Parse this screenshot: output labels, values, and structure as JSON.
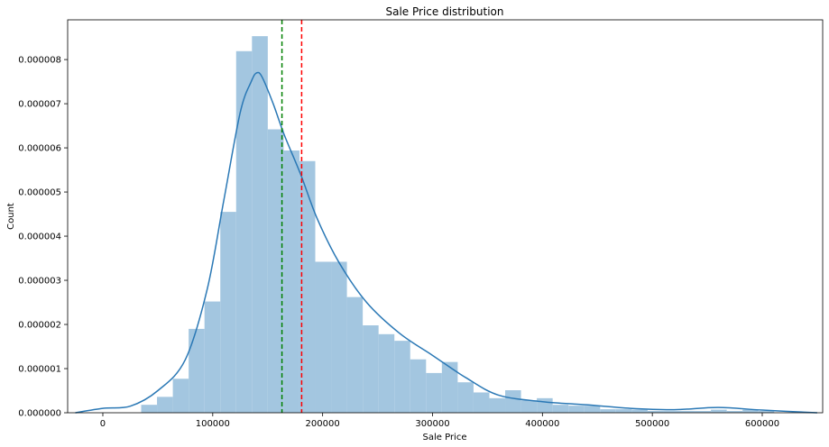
{
  "chart_data": {
    "type": "bar",
    "subtype": "histogram_with_kde",
    "title": "Sale Price distribution",
    "xlabel": "Sale Price",
    "ylabel": "Count",
    "xlim": [
      -32000,
      655000
    ],
    "ylim": [
      0,
      8.9e-06
    ],
    "xticks": [
      0,
      100000,
      200000,
      300000,
      400000,
      500000,
      600000
    ],
    "xtick_labels": [
      "0",
      "100000",
      "200000",
      "300000",
      "400000",
      "500000",
      "600000"
    ],
    "yticks": [
      0,
      1e-06,
      2e-06,
      3e-06,
      4e-06,
      5e-06,
      6e-06,
      7e-06,
      8e-06
    ],
    "ytick_labels": [
      "0.000000",
      "0.000001",
      "0.000002",
      "0.000003",
      "0.000004",
      "0.000005",
      "0.000006",
      "0.000007",
      "0.000008"
    ],
    "grid": false,
    "bar_color": "#a3c6e0",
    "kde_color": "#2a78b5",
    "bins": {
      "edges": [
        34900,
        49300,
        63700,
        78100,
        92500,
        106900,
        121300,
        135700,
        150100,
        164500,
        178900,
        193300,
        207700,
        222100,
        236500,
        250900,
        265300,
        279700,
        294100,
        308500,
        322900,
        337300,
        351700,
        366100,
        380500,
        394900,
        409300,
        423700,
        438100,
        452500,
        466900,
        481300,
        495700,
        510100,
        524500,
        538900,
        553300,
        567700,
        582100,
        596500,
        610900
      ],
      "heights": [
        1.8e-07,
        3.6e-07,
        7.7e-07,
        1.9e-06,
        2.52e-06,
        4.55e-06,
        8.19e-06,
        8.53e-06,
        6.42e-06,
        5.94e-06,
        5.7e-06,
        3.42e-06,
        3.42e-06,
        2.62e-06,
        1.98e-06,
        1.78e-06,
        1.63e-06,
        1.21e-06,
        9e-07,
        1.15e-06,
        6.9e-07,
        4.6e-07,
        3.3e-07,
        5.1e-07,
        2.8e-07,
        3.3e-07,
        1.8e-07,
        1.6e-07,
        1.6e-07,
        8e-08,
        8e-08,
        7e-08,
        4e-08,
        4e-08,
        4e-08,
        4e-08,
        7e-08,
        4e-08,
        7e-08,
        4e-08
      ]
    },
    "kde": {
      "x": [
        -25000,
        0,
        25000,
        50000,
        75000,
        95000,
        110000,
        125000,
        135000,
        140000,
        145000,
        155000,
        165000,
        180000,
        195000,
        215000,
        240000,
        270000,
        300000,
        330000,
        360000,
        400000,
        440000,
        480000,
        520000,
        560000,
        600000,
        650000
      ],
      "y": [
        0.0,
        1e-07,
        1.5e-07,
        5e-07,
        1.2e-06,
        2.8e-06,
        4.8e-06,
        6.8e-06,
        7.5e-06,
        7.7e-06,
        7.6e-06,
        7e-06,
        6.3e-06,
        5.4e-06,
        4.4e-06,
        3.4e-06,
        2.5e-06,
        1.8e-06,
        1.3e-06,
        8e-07,
        4e-07,
        2.5e-07,
        1.8e-07,
        1e-07,
        7e-08,
        1.2e-07,
        6e-08,
        0.0
      ]
    },
    "reference_lines": [
      {
        "x": 163000,
        "color": "#008000",
        "style": "dashed"
      },
      {
        "x": 180921,
        "color": "#ff0000",
        "style": "dashed"
      }
    ]
  }
}
